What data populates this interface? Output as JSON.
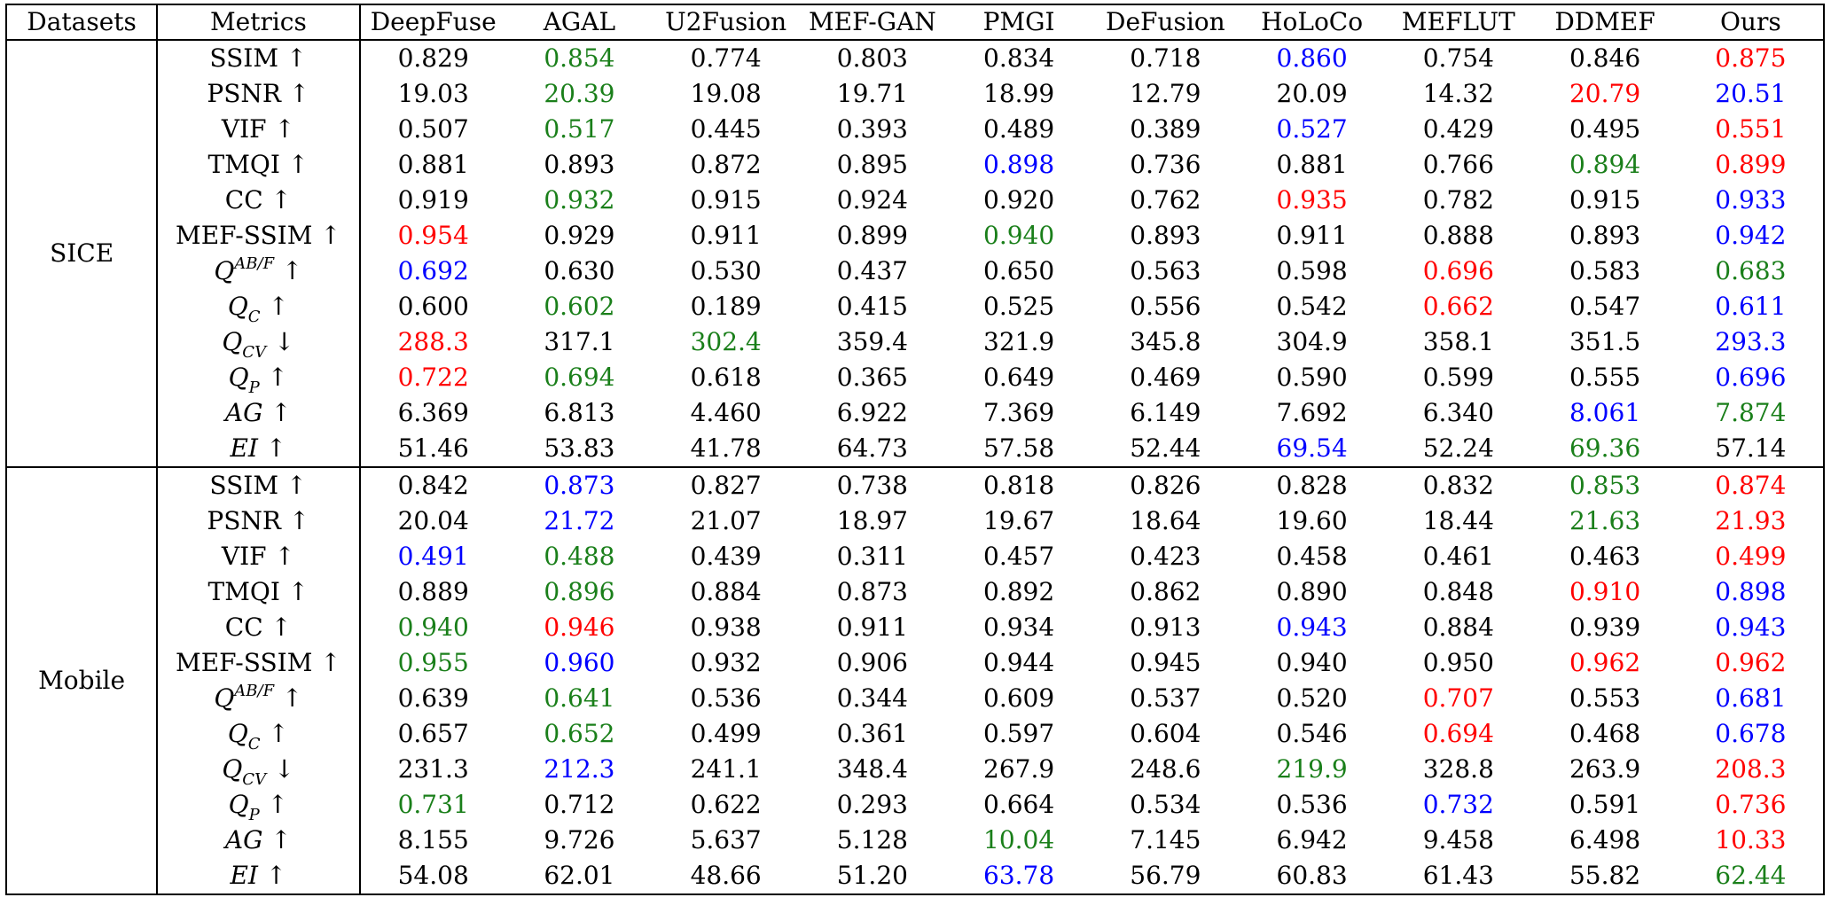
{
  "header": [
    "Datasets",
    "Metrics",
    "DeepFuse",
    "AGAL",
    "U2Fusion",
    "MEF-GAN",
    "PMGI",
    "DeFusion",
    "HoLoCo",
    "MEFLUT",
    "DDMEF",
    "Ours"
  ],
  "colors": {
    "red": "#ff0000",
    "green": "#1a7f1a",
    "blue": "#0000ff"
  },
  "groups": [
    {
      "dataset": "SICE",
      "rows": [
        {
          "metric": {
            "base": "SSIM",
            "arrow": "↑"
          },
          "values": [
            "0.829",
            "0.854",
            "0.774",
            "0.803",
            "0.834",
            "0.718",
            "0.860",
            "0.754",
            "0.846",
            "0.875"
          ],
          "colors": [
            "",
            "green",
            "",
            "",
            "",
            "",
            "blue",
            "",
            "",
            "red"
          ]
        },
        {
          "metric": {
            "base": "PSNR",
            "arrow": "↑"
          },
          "values": [
            "19.03",
            "20.39",
            "19.08",
            "19.71",
            "18.99",
            "12.79",
            "20.09",
            "14.32",
            "20.79",
            "20.51"
          ],
          "colors": [
            "",
            "green",
            "",
            "",
            "",
            "",
            "",
            "",
            "red",
            "blue"
          ]
        },
        {
          "metric": {
            "base": "VIF",
            "arrow": "↑"
          },
          "values": [
            "0.507",
            "0.517",
            "0.445",
            "0.393",
            "0.489",
            "0.389",
            "0.527",
            "0.429",
            "0.495",
            "0.551"
          ],
          "colors": [
            "",
            "green",
            "",
            "",
            "",
            "",
            "blue",
            "",
            "",
            "red"
          ]
        },
        {
          "metric": {
            "base": "TMQI",
            "arrow": "↑"
          },
          "values": [
            "0.881",
            "0.893",
            "0.872",
            "0.895",
            "0.898",
            "0.736",
            "0.881",
            "0.766",
            "0.894",
            "0.899"
          ],
          "colors": [
            "",
            "",
            "",
            "",
            "blue",
            "",
            "",
            "",
            "green",
            "red"
          ]
        },
        {
          "metric": {
            "base": "CC",
            "arrow": "↑"
          },
          "values": [
            "0.919",
            "0.932",
            "0.915",
            "0.924",
            "0.920",
            "0.762",
            "0.935",
            "0.782",
            "0.915",
            "0.933"
          ],
          "colors": [
            "",
            "green",
            "",
            "",
            "",
            "",
            "red",
            "",
            "",
            "blue"
          ]
        },
        {
          "metric": {
            "base": "MEF-SSIM",
            "arrow": "↑"
          },
          "values": [
            "0.954",
            "0.929",
            "0.911",
            "0.899",
            "0.940",
            "0.893",
            "0.911",
            "0.888",
            "0.893",
            "0.942"
          ],
          "colors": [
            "red",
            "",
            "",
            "",
            "green",
            "",
            "",
            "",
            "",
            "blue"
          ]
        },
        {
          "metric": {
            "base": "Q",
            "sup": "AB/F",
            "arrow": "↑",
            "italic": true
          },
          "values": [
            "0.692",
            "0.630",
            "0.530",
            "0.437",
            "0.650",
            "0.563",
            "0.598",
            "0.696",
            "0.583",
            "0.683"
          ],
          "colors": [
            "blue",
            "",
            "",
            "",
            "",
            "",
            "",
            "red",
            "",
            "green"
          ]
        },
        {
          "metric": {
            "base": "Q",
            "sub": "C",
            "arrow": "↑",
            "italic": true
          },
          "values": [
            "0.600",
            "0.602",
            "0.189",
            "0.415",
            "0.525",
            "0.556",
            "0.542",
            "0.662",
            "0.547",
            "0.611"
          ],
          "colors": [
            "",
            "green",
            "",
            "",
            "",
            "",
            "",
            "red",
            "",
            "blue"
          ]
        },
        {
          "metric": {
            "base": "Q",
            "sub": "CV",
            "arrow": "↓",
            "italic": true
          },
          "values": [
            "288.3",
            "317.1",
            "302.4",
            "359.4",
            "321.9",
            "345.8",
            "304.9",
            "358.1",
            "351.5",
            "293.3"
          ],
          "colors": [
            "red",
            "",
            "green",
            "",
            "",
            "",
            "",
            "",
            "",
            "blue"
          ]
        },
        {
          "metric": {
            "base": "Q",
            "sub": "P",
            "arrow": "↑",
            "italic": true
          },
          "values": [
            "0.722",
            "0.694",
            "0.618",
            "0.365",
            "0.649",
            "0.469",
            "0.590",
            "0.599",
            "0.555",
            "0.696"
          ],
          "colors": [
            "red",
            "green",
            "",
            "",
            "",
            "",
            "",
            "",
            "",
            "blue"
          ]
        },
        {
          "metric": {
            "base": "AG",
            "arrow": "↑",
            "italic": true
          },
          "values": [
            "6.369",
            "6.813",
            "4.460",
            "6.922",
            "7.369",
            "6.149",
            "7.692",
            "6.340",
            "8.061",
            "7.874"
          ],
          "colors": [
            "",
            "",
            "",
            "",
            "",
            "",
            "",
            "",
            "blue",
            "green"
          ]
        },
        {
          "metric": {
            "base": "EI",
            "arrow": "↑",
            "italic": true
          },
          "values": [
            "51.46",
            "53.83",
            "41.78",
            "64.73",
            "57.58",
            "52.44",
            "69.54",
            "52.24",
            "69.36",
            "57.14"
          ],
          "colors": [
            "",
            "",
            "",
            "",
            "",
            "",
            "blue",
            "",
            "green",
            ""
          ]
        }
      ]
    },
    {
      "dataset": "Mobile",
      "rows": [
        {
          "metric": {
            "base": "SSIM",
            "arrow": "↑"
          },
          "values": [
            "0.842",
            "0.873",
            "0.827",
            "0.738",
            "0.818",
            "0.826",
            "0.828",
            "0.832",
            "0.853",
            "0.874"
          ],
          "colors": [
            "",
            "blue",
            "",
            "",
            "",
            "",
            "",
            "",
            "green",
            "red"
          ]
        },
        {
          "metric": {
            "base": "PSNR",
            "arrow": "↑"
          },
          "values": [
            "20.04",
            "21.72",
            "21.07",
            "18.97",
            "19.67",
            "18.64",
            "19.60",
            "18.44",
            "21.63",
            "21.93"
          ],
          "colors": [
            "",
            "blue",
            "",
            "",
            "",
            "",
            "",
            "",
            "green",
            "red"
          ]
        },
        {
          "metric": {
            "base": "VIF",
            "arrow": "↑"
          },
          "values": [
            "0.491",
            "0.488",
            "0.439",
            "0.311",
            "0.457",
            "0.423",
            "0.458",
            "0.461",
            "0.463",
            "0.499"
          ],
          "colors": [
            "blue",
            "green",
            "",
            "",
            "",
            "",
            "",
            "",
            "",
            "red"
          ]
        },
        {
          "metric": {
            "base": "TMQI",
            "arrow": "↑"
          },
          "values": [
            "0.889",
            "0.896",
            "0.884",
            "0.873",
            "0.892",
            "0.862",
            "0.890",
            "0.848",
            "0.910",
            "0.898"
          ],
          "colors": [
            "",
            "green",
            "",
            "",
            "",
            "",
            "",
            "",
            "red",
            "blue"
          ]
        },
        {
          "metric": {
            "base": "CC",
            "arrow": "↑"
          },
          "values": [
            "0.940",
            "0.946",
            "0.938",
            "0.911",
            "0.934",
            "0.913",
            "0.943",
            "0.884",
            "0.939",
            "0.943"
          ],
          "colors": [
            "green",
            "red",
            "",
            "",
            "",
            "",
            "blue",
            "",
            "",
            "blue"
          ]
        },
        {
          "metric": {
            "base": "MEF-SSIM",
            "arrow": "↑"
          },
          "values": [
            "0.955",
            "0.960",
            "0.932",
            "0.906",
            "0.944",
            "0.945",
            "0.940",
            "0.950",
            "0.962",
            "0.962"
          ],
          "colors": [
            "green",
            "blue",
            "",
            "",
            "",
            "",
            "",
            "",
            "red",
            "red"
          ]
        },
        {
          "metric": {
            "base": "Q",
            "sup": "AB/F",
            "arrow": "↑",
            "italic": true
          },
          "values": [
            "0.639",
            "0.641",
            "0.536",
            "0.344",
            "0.609",
            "0.537",
            "0.520",
            "0.707",
            "0.553",
            "0.681"
          ],
          "colors": [
            "",
            "green",
            "",
            "",
            "",
            "",
            "",
            "red",
            "",
            "blue"
          ]
        },
        {
          "metric": {
            "base": "Q",
            "sub": "C",
            "arrow": "↑",
            "italic": true
          },
          "values": [
            "0.657",
            "0.652",
            "0.499",
            "0.361",
            "0.597",
            "0.604",
            "0.546",
            "0.694",
            "0.468",
            "0.678"
          ],
          "colors": [
            "",
            "green",
            "",
            "",
            "",
            "",
            "",
            "red",
            "",
            "blue"
          ]
        },
        {
          "metric": {
            "base": "Q",
            "sub": "CV",
            "arrow": "↓",
            "italic": true
          },
          "values": [
            "231.3",
            "212.3",
            "241.1",
            "348.4",
            "267.9",
            "248.6",
            "219.9",
            "328.8",
            "263.9",
            "208.3"
          ],
          "colors": [
            "",
            "blue",
            "",
            "",
            "",
            "",
            "green",
            "",
            "",
            "red"
          ]
        },
        {
          "metric": {
            "base": "Q",
            "sub": "P",
            "arrow": "↑",
            "italic": true
          },
          "values": [
            "0.731",
            "0.712",
            "0.622",
            "0.293",
            "0.664",
            "0.534",
            "0.536",
            "0.732",
            "0.591",
            "0.736"
          ],
          "colors": [
            "green",
            "",
            "",
            "",
            "",
            "",
            "",
            "blue",
            "",
            "red"
          ]
        },
        {
          "metric": {
            "base": "AG",
            "arrow": "↑",
            "italic": true
          },
          "values": [
            "8.155",
            "9.726",
            "5.637",
            "5.128",
            "10.04",
            "7.145",
            "6.942",
            "9.458",
            "6.498",
            "10.33"
          ],
          "colors": [
            "",
            "",
            "",
            "",
            "green",
            "",
            "",
            "",
            "",
            "red"
          ]
        },
        {
          "metric": {
            "base": "EI",
            "arrow": "↑",
            "italic": true
          },
          "values": [
            "54.08",
            "62.01",
            "48.66",
            "51.20",
            "63.78",
            "56.79",
            "60.83",
            "61.43",
            "55.82",
            "62.44"
          ],
          "colors": [
            "",
            "",
            "",
            "",
            "blue",
            "",
            "",
            "",
            "",
            "green"
          ]
        }
      ]
    }
  ]
}
